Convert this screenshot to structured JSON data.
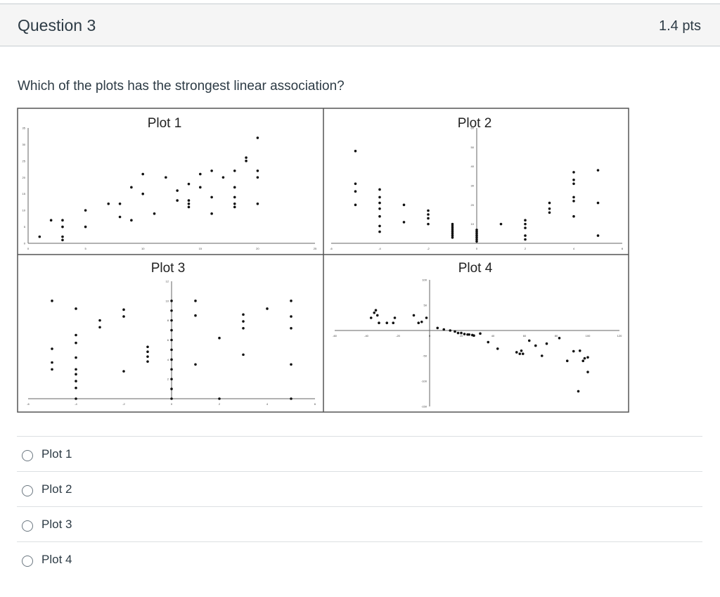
{
  "question": {
    "title": "Question 3",
    "points": "1.4 pts",
    "text": "Which of the plots has the strongest linear association?"
  },
  "answers": [
    {
      "label": "Plot 1"
    },
    {
      "label": "Plot 2"
    },
    {
      "label": "Plot 3"
    },
    {
      "label": "Plot 4"
    }
  ],
  "chart_data": [
    {
      "type": "scatter",
      "title": "Plot 1",
      "xlim": [
        0,
        25
      ],
      "ylim": [
        0,
        35
      ],
      "xticks": [
        "0",
        "5",
        "10",
        "15",
        "20",
        "25"
      ],
      "yticks": [
        "0",
        "5",
        "10",
        "15",
        "20",
        "25",
        "30",
        "35"
      ],
      "points": [
        [
          1,
          2
        ],
        [
          2,
          7
        ],
        [
          3,
          1
        ],
        [
          3,
          2
        ],
        [
          3,
          5
        ],
        [
          3,
          7
        ],
        [
          5,
          5
        ],
        [
          5,
          10
        ],
        [
          7,
          12
        ],
        [
          8,
          8
        ],
        [
          8,
          12
        ],
        [
          9,
          7
        ],
        [
          9,
          17
        ],
        [
          10,
          15
        ],
        [
          10,
          21
        ],
        [
          11,
          9
        ],
        [
          12,
          20
        ],
        [
          13,
          13
        ],
        [
          13,
          16
        ],
        [
          14,
          11
        ],
        [
          14,
          12
        ],
        [
          14,
          13
        ],
        [
          14,
          18
        ],
        [
          15,
          17
        ],
        [
          15,
          21
        ],
        [
          16,
          9
        ],
        [
          16,
          14
        ],
        [
          16,
          22
        ],
        [
          17,
          20
        ],
        [
          18,
          11
        ],
        [
          18,
          12
        ],
        [
          18,
          14
        ],
        [
          18,
          17
        ],
        [
          18,
          22
        ],
        [
          19,
          25
        ],
        [
          19,
          26
        ],
        [
          20,
          12
        ],
        [
          20,
          20
        ],
        [
          20,
          22
        ],
        [
          20,
          32
        ]
      ]
    },
    {
      "type": "scatter",
      "title": "Plot 2",
      "xlim": [
        -6,
        6
      ],
      "ylim": [
        0,
        60
      ],
      "xticks": [
        "-6",
        "-4",
        "-2",
        "0",
        "2",
        "4",
        "6"
      ],
      "yticks": [
        "10",
        "20",
        "30",
        "40",
        "50",
        "60"
      ],
      "points": [
        [
          -5,
          20
        ],
        [
          -5,
          27
        ],
        [
          -5,
          31
        ],
        [
          -5,
          48
        ],
        [
          -4,
          6
        ],
        [
          -4,
          9
        ],
        [
          -4,
          14
        ],
        [
          -4,
          18
        ],
        [
          -4,
          21
        ],
        [
          -4,
          24
        ],
        [
          -4,
          28
        ],
        [
          -3,
          11
        ],
        [
          -3,
          20
        ],
        [
          -2,
          10
        ],
        [
          -2,
          13
        ],
        [
          -2,
          15
        ],
        [
          -2,
          17
        ],
        [
          -1,
          3
        ],
        [
          -1,
          4
        ],
        [
          -1,
          5
        ],
        [
          -1,
          6
        ],
        [
          -1,
          7
        ],
        [
          -1,
          8
        ],
        [
          -1,
          9
        ],
        [
          -1,
          10
        ],
        [
          0,
          1
        ],
        [
          0,
          2
        ],
        [
          0,
          3
        ],
        [
          0,
          4
        ],
        [
          0,
          5
        ],
        [
          0,
          6
        ],
        [
          0,
          7
        ],
        [
          1,
          10
        ],
        [
          2,
          2
        ],
        [
          2,
          4
        ],
        [
          2,
          8
        ],
        [
          2,
          10
        ],
        [
          2,
          12
        ],
        [
          3,
          16
        ],
        [
          3,
          18
        ],
        [
          3,
          21
        ],
        [
          4,
          14
        ],
        [
          4,
          22
        ],
        [
          4,
          24
        ],
        [
          4,
          31
        ],
        [
          4,
          33
        ],
        [
          4,
          37
        ],
        [
          5,
          4
        ],
        [
          5,
          21
        ],
        [
          5,
          38
        ]
      ]
    },
    {
      "type": "scatter",
      "title": "Plot 3",
      "xlim": [
        -6,
        6
      ],
      "ylim": [
        0,
        12
      ],
      "xticks": [
        "-6",
        "-4",
        "-2",
        "0",
        "2",
        "4",
        "6"
      ],
      "yticks": [
        "2",
        "4",
        "6",
        "8",
        "10",
        "12"
      ],
      "points": [
        [
          -5,
          3
        ],
        [
          -5,
          3.7
        ],
        [
          -5,
          5.1
        ],
        [
          -5,
          10
        ],
        [
          -4,
          0
        ],
        [
          -4,
          1.1
        ],
        [
          -4,
          1.8
        ],
        [
          -4,
          2.5
        ],
        [
          -4,
          3
        ],
        [
          -4,
          4.2
        ],
        [
          -4,
          5.7
        ],
        [
          -4,
          6.5
        ],
        [
          -4,
          9.2
        ],
        [
          -3,
          7.3
        ],
        [
          -3,
          8
        ],
        [
          -2,
          2.8
        ],
        [
          -2,
          8.4
        ],
        [
          -2,
          9.1
        ],
        [
          -1,
          3.8
        ],
        [
          -1,
          4.3
        ],
        [
          -1,
          4.8
        ],
        [
          -1,
          5.3
        ],
        [
          0,
          0
        ],
        [
          0,
          1
        ],
        [
          0,
          2
        ],
        [
          0,
          3
        ],
        [
          0,
          4
        ],
        [
          0,
          5
        ],
        [
          0,
          6
        ],
        [
          0,
          7
        ],
        [
          0,
          8
        ],
        [
          0,
          9
        ],
        [
          0,
          10
        ],
        [
          1,
          3.5
        ],
        [
          1,
          8.5
        ],
        [
          1,
          10
        ],
        [
          2,
          0
        ],
        [
          2,
          6.2
        ],
        [
          3,
          4.5
        ],
        [
          3,
          7.2
        ],
        [
          3,
          7.9
        ],
        [
          3,
          8.6
        ],
        [
          4,
          9.2
        ],
        [
          5,
          0
        ],
        [
          5,
          3.5
        ],
        [
          5,
          7.2
        ],
        [
          5,
          8.4
        ],
        [
          5,
          10
        ]
      ]
    },
    {
      "type": "scatter",
      "title": "Plot 4",
      "xlim": [
        -60,
        120
      ],
      "ylim": [
        -150,
        100
      ],
      "xticks": [
        "-60",
        "-40",
        "-20",
        "0",
        "20",
        "40",
        "60",
        "80",
        "100",
        "120"
      ],
      "yticks": [
        "100",
        "50",
        "-50",
        "-100",
        "-150"
      ],
      "points": [
        [
          -37,
          25
        ],
        [
          -35,
          35
        ],
        [
          -34,
          40
        ],
        [
          -33,
          30
        ],
        [
          -32,
          15
        ],
        [
          -27,
          15
        ],
        [
          -23,
          15
        ],
        [
          -22,
          25
        ],
        [
          -10,
          30
        ],
        [
          -7,
          15
        ],
        [
          -5,
          17
        ],
        [
          -2,
          25
        ],
        [
          5,
          5
        ],
        [
          9,
          2
        ],
        [
          13,
          0
        ],
        [
          16,
          -2
        ],
        [
          18,
          -5
        ],
        [
          20,
          -5
        ],
        [
          22,
          -7
        ],
        [
          24,
          -8
        ],
        [
          25,
          -8
        ],
        [
          27,
          -9
        ],
        [
          28,
          -10
        ],
        [
          32,
          -6
        ],
        [
          37,
          -23
        ],
        [
          43,
          -36
        ],
        [
          55,
          -43
        ],
        [
          57,
          -46
        ],
        [
          58,
          -40
        ],
        [
          59,
          -46
        ],
        [
          63,
          -20
        ],
        [
          67,
          -30
        ],
        [
          71,
          -50
        ],
        [
          74,
          -26
        ],
        [
          82,
          -15
        ],
        [
          87,
          -60
        ],
        [
          91,
          -41
        ],
        [
          95,
          -40
        ],
        [
          97,
          -60
        ],
        [
          98,
          -55
        ],
        [
          100,
          -53
        ],
        [
          100,
          -82
        ],
        [
          94,
          -120
        ]
      ]
    }
  ]
}
